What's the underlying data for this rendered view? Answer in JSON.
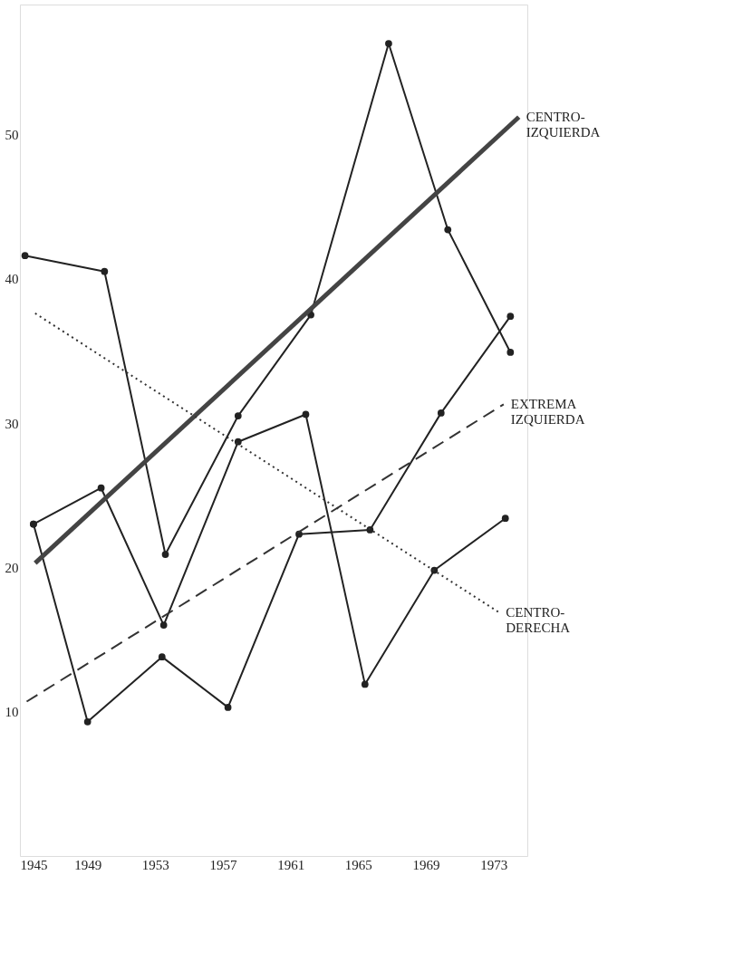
{
  "chart_data": {
    "type": "line",
    "xlim": [
      1945,
      1975
    ],
    "xticks": [
      1945,
      1949,
      1953,
      1957,
      1961,
      1965,
      1969,
      1973
    ],
    "ylim": [
      0,
      59
    ],
    "yticks": [
      10,
      20,
      30,
      40,
      50
    ],
    "grid": false,
    "series": [
      {
        "color": "#222222",
        "marker": "circle",
        "line_style": "solid",
        "x": [
          1945.3,
          1950.0,
          1953.6,
          1957.9,
          1962.2,
          1966.8,
          1970.3,
          1974.0
        ],
        "values": [
          41.6,
          40.5,
          20.9,
          30.5,
          37.5,
          56.3,
          43.4,
          34.9
        ]
      },
      {
        "color": "#222222",
        "marker": "circle",
        "line_style": "solid",
        "x": [
          1945.8,
          1949.8,
          1953.5,
          1957.9,
          1961.9,
          1965.4,
          1969.5,
          1973.7
        ],
        "values": [
          23.0,
          25.5,
          16.0,
          28.7,
          30.6,
          11.9,
          19.8,
          23.4
        ]
      },
      {
        "color": "#222222",
        "marker": "circle",
        "line_style": "solid",
        "x": [
          1945.8,
          1949.0,
          1953.4,
          1957.3,
          1961.5,
          1965.7,
          1969.9,
          1974.0
        ],
        "values": [
          23.0,
          9.3,
          13.8,
          10.3,
          22.3,
          22.6,
          30.7,
          37.4
        ]
      },
      {
        "name": "CENTRO-\nIZQUIERDA",
        "color": "#444444",
        "marker": "none",
        "line_style": "solid",
        "x": [
          1945.9,
          1974.5
        ],
        "values": [
          20.3,
          51.2
        ]
      },
      {
        "name": "EXTREMA\nIZQUIERDA",
        "color": "#333333",
        "marker": "none",
        "line_style": "dashed",
        "x": [
          1945.4,
          1973.6
        ],
        "values": [
          10.7,
          31.3
        ]
      },
      {
        "name": "CENTRO-\nDERECHA",
        "color": "#333333",
        "marker": "none",
        "line_style": "dotted",
        "x": [
          1945.9,
          1973.3
        ],
        "values": [
          37.6,
          16.9
        ]
      }
    ]
  }
}
